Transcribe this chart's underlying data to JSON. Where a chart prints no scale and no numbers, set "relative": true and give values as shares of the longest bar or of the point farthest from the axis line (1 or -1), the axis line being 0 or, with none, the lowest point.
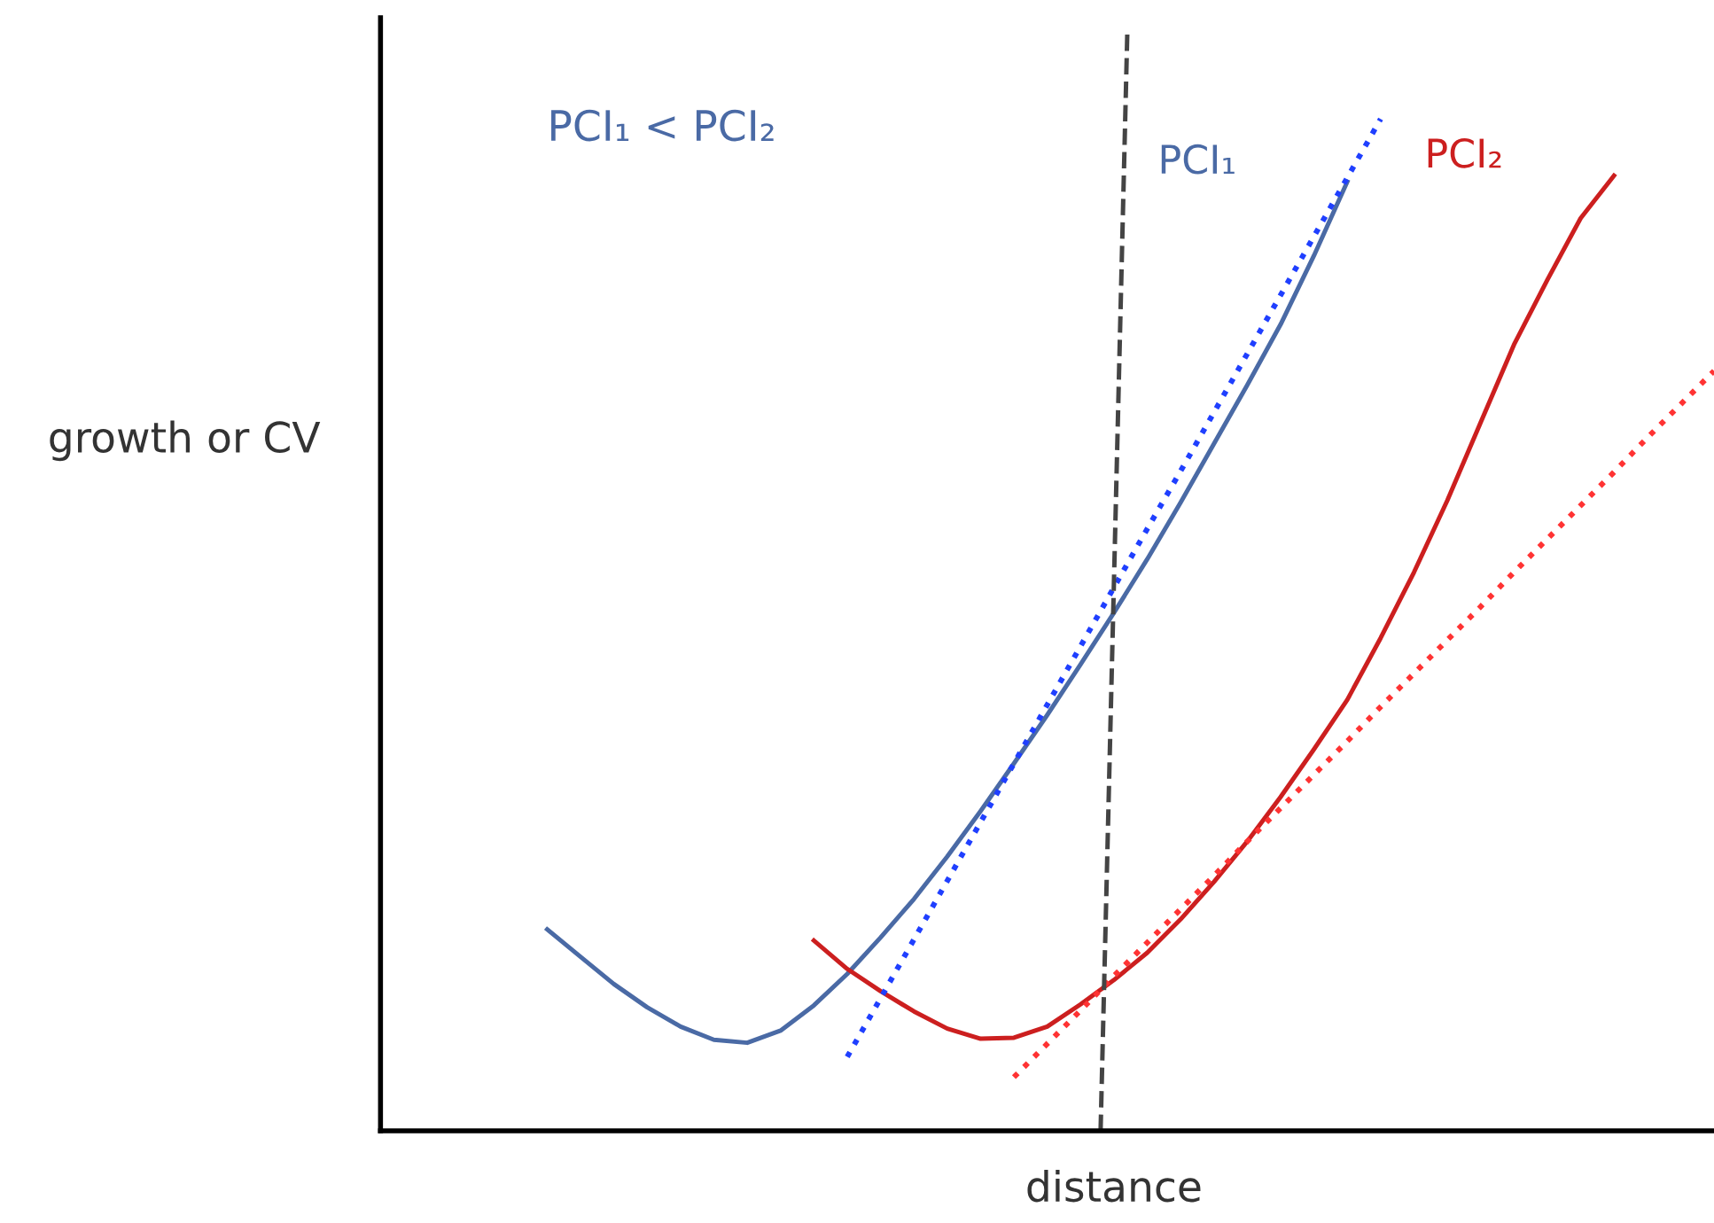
{
  "chart_data": {
    "type": "line",
    "relative": true,
    "xlabel": "distance",
    "ylabel": "growth or CV",
    "legend": false,
    "marker": "none",
    "categories": [
      null,
      null,
      null,
      null,
      null,
      null,
      null,
      null,
      null,
      null,
      null,
      null,
      null,
      null,
      null,
      null,
      null,
      null,
      null,
      null,
      null,
      null,
      null,
      null,
      null,
      null,
      null,
      null,
      null,
      null,
      null,
      null,
      null,
      null,
      null,
      null,
      null,
      null,
      null,
      null,
      null
    ],
    "annotations": [
      "PCI₁ < PCI₂"
    ],
    "series": [
      {
        "name": "PCI₁",
        "color": "#4a6aa5",
        "line_style": "solid",
        "values": [
          null,
          null,
          null,
          null,
          null,
          0.199,
          0.172,
          0.145,
          0.122,
          0.103,
          0.09,
          0.087,
          0.099,
          0.124,
          0.155,
          0.191,
          0.229,
          0.271,
          0.316,
          0.363,
          0.411,
          0.461,
          0.512,
          0.565,
          0.621,
          0.679,
          0.737,
          0.797,
          0.865,
          0.938,
          null,
          null,
          null,
          null,
          null,
          null,
          null,
          null,
          null,
          null,
          null
        ]
      },
      {
        "name": "PCI₂",
        "color": "#cc1f1f",
        "line_style": "solid",
        "values": [
          null,
          null,
          null,
          null,
          null,
          null,
          null,
          null,
          null,
          null,
          null,
          null,
          null,
          0.188,
          0.16,
          0.138,
          0.118,
          0.101,
          0.091,
          0.092,
          0.103,
          0.125,
          0.149,
          0.176,
          0.209,
          0.246,
          0.286,
          0.33,
          0.377,
          0.426,
          0.487,
          0.552,
          0.623,
          0.7,
          0.777,
          0.841,
          0.902,
          0.944,
          null,
          null,
          null
        ]
      },
      {
        "color": "#1f3fff",
        "line_style": "dotted",
        "values": [
          null,
          null,
          null,
          null,
          null,
          null,
          null,
          null,
          null,
          null,
          null,
          null,
          null,
          null,
          0.073,
          0.131,
          0.189,
          0.247,
          0.305,
          0.363,
          0.421,
          0.479,
          0.537,
          0.595,
          0.652,
          0.71,
          0.768,
          0.826,
          0.884,
          0.942,
          1.0,
          null,
          null,
          null,
          null,
          null,
          null,
          null,
          null,
          null,
          null
        ]
      },
      {
        "color": "#ff3333",
        "line_style": "dotted",
        "values": [
          null,
          null,
          null,
          null,
          null,
          null,
          null,
          null,
          null,
          null,
          null,
          null,
          null,
          null,
          null,
          null,
          null,
          null,
          null,
          0.053,
          0.086,
          0.119,
          0.153,
          0.186,
          0.219,
          0.252,
          0.286,
          0.319,
          0.352,
          0.385,
          0.419,
          0.452,
          0.485,
          0.518,
          0.552,
          0.585,
          0.618,
          0.651,
          0.685,
          0.718,
          0.751
        ]
      }
    ]
  }
}
